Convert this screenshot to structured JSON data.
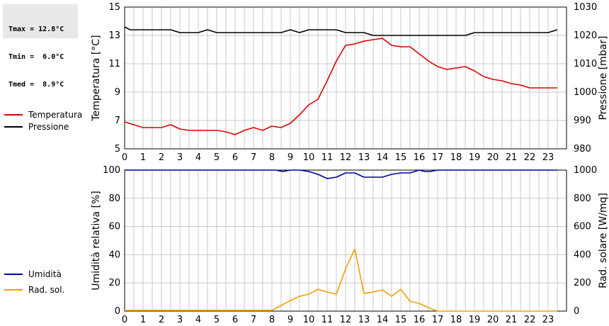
{
  "stats": {
    "tmax": "Tmax = 12.8°C",
    "tmin": "Tmin =  6.0°C",
    "tmed": "Tmed =  8.9°C"
  },
  "colors": {
    "temperature": "#dd0000",
    "pressure": "#000000",
    "humidity": "#0000aa",
    "radiation": "#f0a000",
    "grid": "#c8c8c8"
  },
  "chart_data": [
    {
      "type": "line",
      "xlim": [
        0,
        24
      ],
      "xticks": [
        "0",
        "1",
        "2",
        "3",
        "4",
        "5",
        "6",
        "7",
        "8",
        "9",
        "10",
        "11",
        "12",
        "13",
        "14",
        "15",
        "16",
        "17",
        "18",
        "19",
        "20",
        "21",
        "22",
        "23"
      ],
      "ylabel": "Temperatura [°C]",
      "ylim": [
        5,
        15
      ],
      "yticks": [
        "5",
        "7",
        "9",
        "11",
        "13",
        "15"
      ],
      "ylabel_right": "Pressione [mbar]",
      "ylim_right": [
        980,
        1030
      ],
      "yticks_right": [
        "980",
        "990",
        "1000",
        "1010",
        "1020",
        "1030"
      ],
      "grid": true,
      "legend": "left",
      "series": [
        {
          "name": "Temperatura",
          "axis": "left",
          "x": [
            0,
            0.5,
            1,
            1.5,
            2,
            2.5,
            3,
            3.5,
            4,
            4.5,
            5,
            5.5,
            6,
            6.5,
            7,
            7.5,
            8,
            8.5,
            9,
            9.5,
            10,
            10.5,
            11,
            11.5,
            12,
            12.5,
            13,
            13.5,
            14,
            14.5,
            15,
            15.5,
            16,
            16.5,
            17,
            17.5,
            18,
            18.5,
            19,
            19.5,
            20,
            20.5,
            21,
            21.5,
            22,
            22.5,
            23,
            23.5
          ],
          "y": [
            6.9,
            6.7,
            6.5,
            6.5,
            6.5,
            6.7,
            6.4,
            6.3,
            6.3,
            6.3,
            6.3,
            6.2,
            6.0,
            6.3,
            6.5,
            6.3,
            6.6,
            6.5,
            6.8,
            7.4,
            8.1,
            8.5,
            9.8,
            11.2,
            12.3,
            12.4,
            12.6,
            12.7,
            12.8,
            12.3,
            12.2,
            12.2,
            11.7,
            11.2,
            10.8,
            10.6,
            10.7,
            10.8,
            10.5,
            10.1,
            9.9,
            9.8,
            9.6,
            9.5,
            9.3,
            9.3,
            9.3,
            9.3
          ]
        },
        {
          "name": "Pressione",
          "axis": "right",
          "x": [
            0,
            0.3,
            1,
            1.5,
            2,
            2.5,
            3,
            3.5,
            4,
            4.5,
            5,
            5.5,
            6,
            6.5,
            7,
            7.5,
            8,
            8.5,
            9,
            9.5,
            10,
            10.5,
            11,
            11.5,
            12,
            12.5,
            13,
            13.5,
            14,
            14.5,
            15,
            15.5,
            16,
            16.5,
            17,
            17.5,
            18,
            18.5,
            19,
            19.5,
            20,
            20.5,
            21,
            21.5,
            22,
            22.5,
            23,
            23.5
          ],
          "y": [
            1023,
            1022,
            1022,
            1022,
            1022,
            1022,
            1021,
            1021,
            1021,
            1022,
            1021,
            1021,
            1021,
            1021,
            1021,
            1021,
            1021,
            1021,
            1022,
            1021,
            1022,
            1022,
            1022,
            1022,
            1021,
            1021,
            1021,
            1020,
            1020,
            1020,
            1020,
            1020,
            1020,
            1020,
            1020,
            1020,
            1020,
            1020,
            1021,
            1021,
            1021,
            1021,
            1021,
            1021,
            1021,
            1021,
            1021,
            1022
          ]
        }
      ]
    },
    {
      "type": "line",
      "xlim": [
        0,
        24
      ],
      "xticks": [
        "0",
        "1",
        "2",
        "3",
        "4",
        "5",
        "6",
        "7",
        "8",
        "9",
        "10",
        "11",
        "12",
        "13",
        "14",
        "15",
        "16",
        "17",
        "18",
        "19",
        "20",
        "21",
        "22",
        "23"
      ],
      "ylabel": "Umidità relativa [%]",
      "ylim": [
        0,
        100
      ],
      "yticks": [
        "0",
        "20",
        "40",
        "60",
        "80",
        "100"
      ],
      "ylabel_right": "Rad. solare [W/mq]",
      "ylim_right": [
        0,
        1000
      ],
      "yticks_right": [
        "0",
        "200",
        "400",
        "600",
        "800",
        "1000"
      ],
      "grid": true,
      "legend": "left",
      "series": [
        {
          "name": "Umidità",
          "axis": "left",
          "x": [
            0,
            8.2,
            8.6,
            9.0,
            9.5,
            10.0,
            10.5,
            11.0,
            11.5,
            12.0,
            12.5,
            13.0,
            13.5,
            14.0,
            14.5,
            15.0,
            15.5,
            16.0,
            16.3,
            16.6,
            17.0,
            23.5
          ],
          "y": [
            100,
            100,
            99,
            100,
            100,
            99,
            97,
            94,
            95,
            98,
            98,
            95,
            95,
            95,
            97,
            98,
            98,
            100,
            99,
            99,
            100,
            100
          ]
        },
        {
          "name": "Rad. sol.",
          "axis": "right",
          "x": [
            0,
            8.0,
            8.5,
            9.0,
            9.5,
            10.0,
            10.5,
            11.0,
            11.5,
            12.0,
            12.5,
            13.0,
            13.5,
            14.0,
            14.5,
            15.0,
            15.5,
            16.0,
            16.5,
            17.0,
            23.5
          ],
          "y": [
            5,
            5,
            40,
            75,
            105,
            120,
            155,
            135,
            120,
            300,
            440,
            125,
            135,
            150,
            105,
            155,
            70,
            55,
            25,
            0,
            0
          ]
        }
      ]
    }
  ]
}
